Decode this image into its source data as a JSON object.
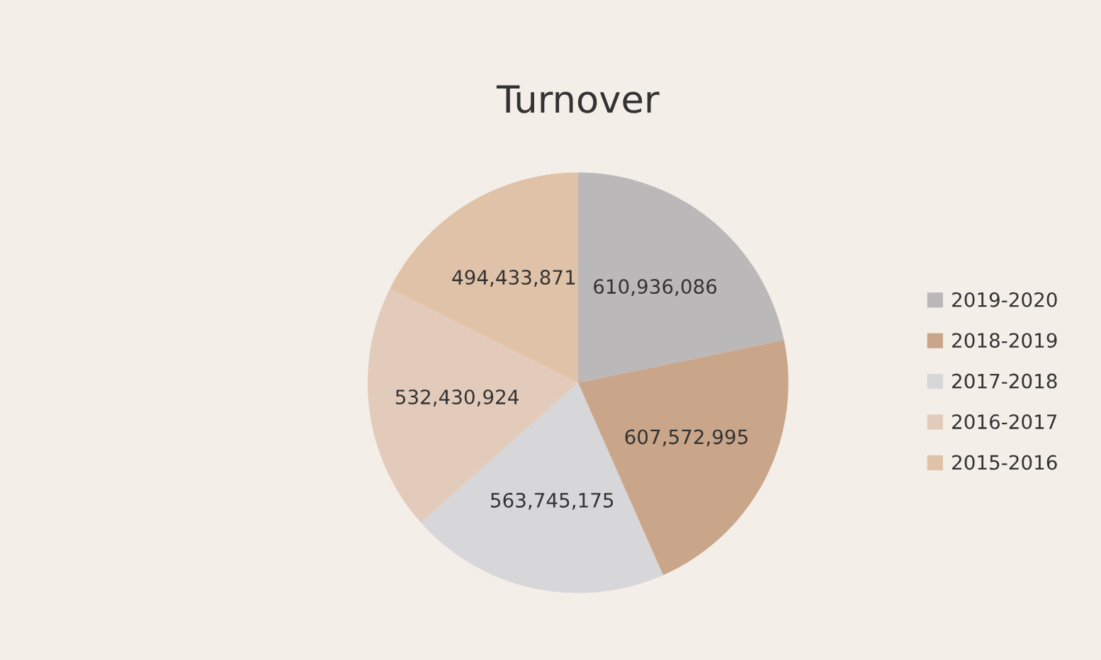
{
  "chart_data": {
    "type": "pie",
    "title": "Turnover",
    "categories": [
      "2019-2020",
      "2018-2019",
      "2017-2018",
      "2016-2017",
      "2015-2016"
    ],
    "values": [
      610936086,
      607572995,
      563745175,
      532430924,
      494433871
    ],
    "value_labels": [
      "610,936,086",
      "607,572,995",
      "563,745,175",
      "532,430,924",
      "494,433,871"
    ],
    "colors": [
      "#bab8b9",
      "#c9a689",
      "#d7d6d9",
      "#e3cbbb",
      "#e0c2a8"
    ],
    "legend": "right"
  }
}
